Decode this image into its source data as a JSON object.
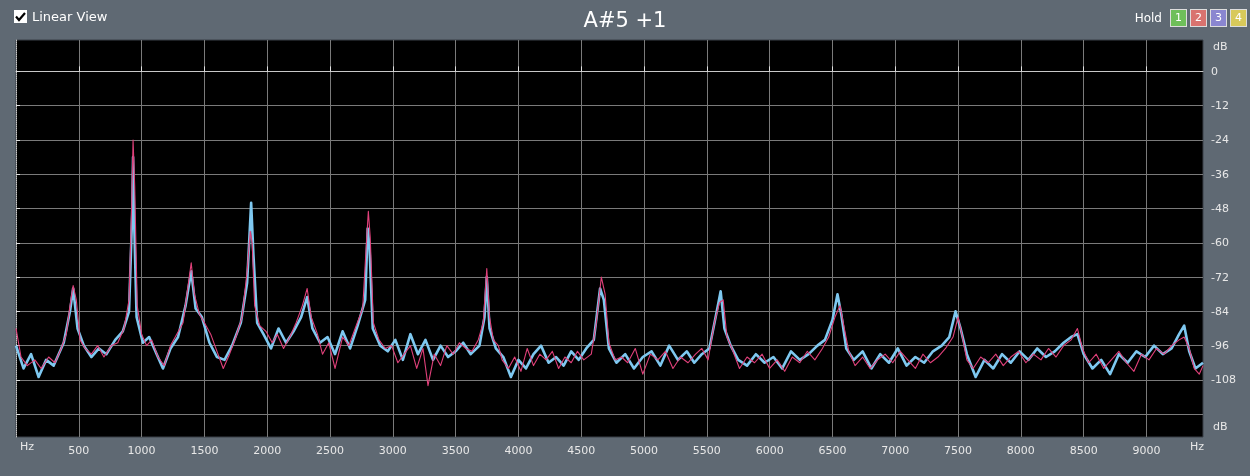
{
  "chart_data": {
    "type": "line",
    "title": "A#5 +1",
    "xlabel": "Hz",
    "ylabel": "dB",
    "annotations": [
      "Linear View",
      "Hold",
      "1",
      "2",
      "3",
      "4"
    ],
    "xlim": [
      0,
      9450
    ],
    "xticks": [
      500,
      1000,
      1500,
      2000,
      2500,
      3000,
      3500,
      4000,
      4500,
      5000,
      5500,
      6000,
      6500,
      7000,
      7500,
      8000,
      8500,
      9000
    ],
    "ylim": [
      -128,
      11
    ],
    "yticks": [
      0,
      -12,
      -24,
      -36,
      -48,
      -60,
      -72,
      -84,
      -96,
      -108,
      {
        "value": -120,
        "label": null
      }
    ],
    "grid": true,
    "marker": "none",
    "line_style": "solid",
    "series": [
      {
        "color": "#7ec8f0",
        "x": [
          0,
          60,
          120,
          180,
          240,
          300,
          380,
          430,
          455,
          490,
          540,
          600,
          660,
          720,
          790,
          850,
          900,
          925,
          932,
          942,
          960,
          1010,
          1060,
          1120,
          1170,
          1230,
          1290,
          1350,
          1395,
          1430,
          1480,
          1540,
          1600,
          1660,
          1720,
          1790,
          1840,
          1872,
          1890,
          1920,
          1970,
          2030,
          2090,
          2150,
          2210,
          2270,
          2318,
          2360,
          2420,
          2480,
          2540,
          2600,
          2660,
          2720,
          2780,
          2800,
          2815,
          2840,
          2900,
          2960,
          3020,
          3080,
          3140,
          3200,
          3260,
          3320,
          3380,
          3440,
          3500,
          3560,
          3620,
          3690,
          3730,
          3748,
          3770,
          3820,
          3880,
          3940,
          4000,
          4060,
          4120,
          4180,
          4240,
          4300,
          4360,
          4420,
          4480,
          4540,
          4600,
          4650,
          4680,
          4720,
          4780,
          4850,
          4920,
          4990,
          5060,
          5130,
          5200,
          5270,
          5340,
          5400,
          5460,
          5520,
          5570,
          5610,
          5640,
          5690,
          5750,
          5820,
          5890,
          5960,
          6030,
          6100,
          6170,
          6240,
          6310,
          6380,
          6440,
          6500,
          6540,
          6570,
          6610,
          6670,
          6740,
          6810,
          6880,
          6950,
          7020,
          7090,
          7160,
          7230,
          7300,
          7370,
          7430,
          7480,
          7520,
          7570,
          7640,
          7710,
          7780,
          7850,
          7920,
          7990,
          8060,
          8130,
          8200,
          8270,
          8340,
          8400,
          8450,
          8500,
          8570,
          8640,
          8710,
          8780,
          8850,
          8920,
          8990,
          9060,
          9130,
          9200,
          9260,
          9300,
          9340,
          9390,
          9450
        ],
        "values": [
          -96,
          -104,
          -99,
          -107,
          -101,
          -103,
          -95,
          -84,
          -76,
          -90,
          -96,
          -100,
          -97,
          -99,
          -94,
          -91,
          -84,
          -50,
          -30,
          -55,
          -86,
          -95,
          -93,
          -99,
          -104,
          -97,
          -93,
          -82,
          -70,
          -83,
          -86,
          -95,
          -100,
          -101,
          -96,
          -88,
          -74,
          -46,
          -64,
          -88,
          -92,
          -97,
          -90,
          -95,
          -91,
          -86,
          -79,
          -90,
          -95,
          -93,
          -99,
          -91,
          -97,
          -89,
          -80,
          -55,
          -62,
          -90,
          -96,
          -98,
          -94,
          -101,
          -92,
          -99,
          -94,
          -101,
          -96,
          -100,
          -98,
          -95,
          -99,
          -96,
          -86,
          -72,
          -90,
          -97,
          -100,
          -107,
          -101,
          -104,
          -99,
          -96,
          -102,
          -100,
          -103,
          -98,
          -101,
          -97,
          -94,
          -76,
          -80,
          -97,
          -102,
          -99,
          -104,
          -100,
          -98,
          -103,
          -96,
          -101,
          -98,
          -102,
          -99,
          -97,
          -86,
          -77,
          -90,
          -96,
          -101,
          -103,
          -99,
          -102,
          -100,
          -104,
          -98,
          -101,
          -99,
          -96,
          -94,
          -87,
          -78,
          -85,
          -97,
          -101,
          -98,
          -104,
          -99,
          -102,
          -97,
          -103,
          -100,
          -102,
          -98,
          -96,
          -93,
          -84,
          -90,
          -99,
          -107,
          -101,
          -104,
          -99,
          -102,
          -98,
          -101,
          -97,
          -100,
          -98,
          -95,
          -93,
          -92,
          -99,
          -104,
          -101,
          -106,
          -99,
          -102,
          -98,
          -100,
          -96,
          -99,
          -97,
          -92,
          -89,
          -98,
          -104,
          -102
        ]
      },
      {
        "color": "#e0407a",
        "x": [
          0,
          40,
          90,
          150,
          200,
          260,
          310,
          360,
          400,
          430,
          455,
          480,
          510,
          550,
          600,
          650,
          700,
          760,
          810,
          860,
          900,
          922,
          932,
          945,
          965,
          1000,
          1040,
          1080,
          1130,
          1180,
          1230,
          1280,
          1330,
          1370,
          1395,
          1420,
          1460,
          1500,
          1550,
          1600,
          1650,
          1700,
          1750,
          1800,
          1840,
          1865,
          1880,
          1900,
          1940,
          1990,
          2040,
          2080,
          2130,
          2180,
          2230,
          2280,
          2318,
          2350,
          2400,
          2440,
          2490,
          2540,
          2600,
          2650,
          2700,
          2760,
          2790,
          2805,
          2820,
          2845,
          2890,
          2940,
          2990,
          3040,
          3090,
          3140,
          3190,
          3240,
          3280,
          3330,
          3380,
          3430,
          3480,
          3530,
          3580,
          3630,
          3680,
          3720,
          3748,
          3770,
          3800,
          3840,
          3870,
          3920,
          3970,
          4020,
          4070,
          4120,
          4170,
          4220,
          4270,
          4320,
          4370,
          4420,
          4470,
          4520,
          4580,
          4620,
          4660,
          4690,
          4720,
          4770,
          4820,
          4870,
          4930,
          4990,
          5050,
          5110,
          5170,
          5230,
          5290,
          5350,
          5410,
          5460,
          5510,
          5560,
          5600,
          5630,
          5660,
          5700,
          5760,
          5820,
          5880,
          5940,
          6000,
          6060,
          6120,
          6180,
          6240,
          6300,
          6360,
          6420,
          6470,
          6520,
          6560,
          6590,
          6630,
          6680,
          6740,
          6800,
          6860,
          6920,
          6980,
          7040,
          7100,
          7160,
          7220,
          7280,
          7340,
          7400,
          7460,
          7500,
          7530,
          7570,
          7620,
          7680,
          7740,
          7800,
          7860,
          7920,
          7980,
          8040,
          8100,
          8160,
          8220,
          8280,
          8340,
          8400,
          8450,
          8490,
          8540,
          8600,
          8660,
          8720,
          8780,
          8840,
          8900,
          8960,
          9020,
          9080,
          9140,
          9200,
          9260,
          9300,
          9340,
          9380,
          9420,
          9450
        ],
        "values": [
          -90,
          -100,
          -103,
          -101,
          -104,
          -100,
          -102,
          -97,
          -92,
          -82,
          -75,
          -80,
          -94,
          -97,
          -99,
          -96,
          -100,
          -96,
          -95,
          -90,
          -80,
          -45,
          -24,
          -40,
          -82,
          -92,
          -96,
          -94,
          -100,
          -103,
          -96,
          -92,
          -88,
          -75,
          -67,
          -78,
          -85,
          -88,
          -92,
          -98,
          -104,
          -99,
          -93,
          -86,
          -70,
          -56,
          -60,
          -82,
          -89,
          -91,
          -95,
          -92,
          -97,
          -93,
          -88,
          -82,
          -76,
          -86,
          -92,
          -99,
          -95,
          -104,
          -93,
          -96,
          -90,
          -83,
          -60,
          -49,
          -58,
          -88,
          -94,
          -97,
          -96,
          -102,
          -99,
          -96,
          -104,
          -97,
          -110,
          -99,
          -103,
          -96,
          -99,
          -95,
          -97,
          -98,
          -94,
          -88,
          -69,
          -86,
          -94,
          -96,
          -101,
          -104,
          -100,
          -105,
          -97,
          -103,
          -99,
          -101,
          -98,
          -104,
          -100,
          -102,
          -98,
          -101,
          -99,
          -88,
          -72,
          -78,
          -95,
          -101,
          -100,
          -102,
          -97,
          -106,
          -99,
          -101,
          -98,
          -104,
          -100,
          -102,
          -99,
          -97,
          -101,
          -88,
          -81,
          -80,
          -93,
          -97,
          -104,
          -100,
          -102,
          -99,
          -104,
          -101,
          -105,
          -100,
          -102,
          -98,
          -101,
          -97,
          -93,
          -86,
          -82,
          -89,
          -98,
          -103,
          -100,
          -104,
          -101,
          -99,
          -102,
          -98,
          -101,
          -104,
          -99,
          -102,
          -100,
          -97,
          -93,
          -86,
          -92,
          -101,
          -104,
          -100,
          -102,
          -99,
          -103,
          -100,
          -98,
          -102,
          -99,
          -101,
          -97,
          -100,
          -96,
          -94,
          -90,
          -97,
          -102,
          -99,
          -104,
          -101,
          -98,
          -102,
          -105,
          -99,
          -101,
          -97,
          -99,
          -96,
          -94,
          -93,
          -97,
          -104,
          -106,
          -103
        ]
      }
    ]
  }
}
